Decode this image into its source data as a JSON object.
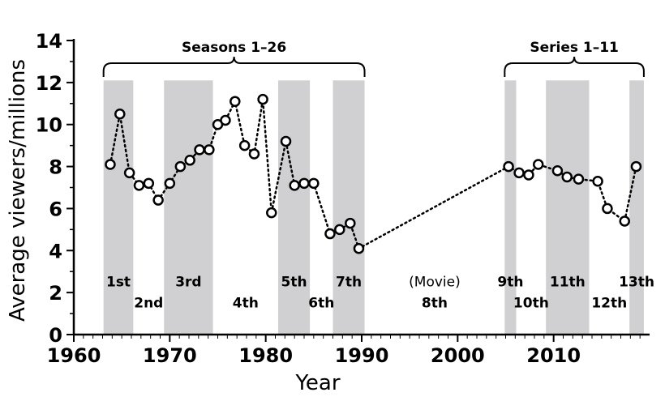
{
  "chart_data": {
    "type": "line",
    "xlabel": "Year",
    "ylabel": "Average viewers/millions",
    "xlim": [
      1960,
      2020
    ],
    "ylim": [
      0,
      14
    ],
    "x_ticks": [
      "1960",
      "1970",
      "1980",
      "1990",
      "2000",
      "2010"
    ],
    "y_ticks": [
      "0",
      "2",
      "4",
      "6",
      "8",
      "10",
      "12",
      "14"
    ],
    "series": [
      {
        "name": "Average viewers",
        "points": [
          [
            1963.8,
            8.1
          ],
          [
            1964.8,
            10.5
          ],
          [
            1965.8,
            7.7
          ],
          [
            1966.8,
            7.1
          ],
          [
            1967.8,
            7.2
          ],
          [
            1968.8,
            6.4
          ],
          [
            1970.0,
            7.2
          ],
          [
            1971.1,
            8.0
          ],
          [
            1972.1,
            8.3
          ],
          [
            1973.1,
            8.8
          ],
          [
            1974.1,
            8.8
          ],
          [
            1975.0,
            10.0
          ],
          [
            1975.8,
            10.2
          ],
          [
            1976.8,
            11.1
          ],
          [
            1977.8,
            9.0
          ],
          [
            1978.8,
            8.6
          ],
          [
            1979.7,
            11.2
          ],
          [
            1980.6,
            5.8
          ],
          [
            1982.1,
            9.2
          ],
          [
            1983.0,
            7.1
          ],
          [
            1984.0,
            7.2
          ],
          [
            1985.0,
            7.2
          ],
          [
            1986.7,
            4.8
          ],
          [
            1987.7,
            5.0
          ],
          [
            1988.8,
            5.3
          ],
          [
            1989.7,
            4.1
          ],
          [
            2005.3,
            8.0
          ],
          [
            2006.4,
            7.7
          ],
          [
            2007.4,
            7.6
          ],
          [
            2008.4,
            8.1
          ],
          [
            2010.4,
            7.8
          ],
          [
            2011.4,
            7.5
          ],
          [
            2012.6,
            7.4
          ],
          [
            2014.6,
            7.3
          ],
          [
            2015.6,
            6.0
          ],
          [
            2017.4,
            5.4
          ],
          [
            2018.6,
            8.0
          ]
        ]
      }
    ],
    "eras": [
      {
        "label": "1st",
        "start": 1963.1,
        "end": 1966.2,
        "shaded": true
      },
      {
        "label": "2nd",
        "start": 1966.2,
        "end": 1969.4,
        "shaded": false
      },
      {
        "label": "3rd",
        "start": 1969.4,
        "end": 1974.5,
        "shaded": true
      },
      {
        "label": "4th",
        "start": 1974.5,
        "end": 1981.3,
        "shaded": false
      },
      {
        "label": "5th",
        "start": 1981.3,
        "end": 1984.6,
        "shaded": true
      },
      {
        "label": "6th",
        "start": 1984.6,
        "end": 1987.0,
        "shaded": false
      },
      {
        "label": "7th",
        "start": 1987.0,
        "end": 1990.3,
        "shaded": true
      },
      {
        "label": "8th",
        "start": 1990.3,
        "end": 2004.9,
        "shaded": false
      },
      {
        "label": "9th",
        "start": 2004.9,
        "end": 2006.1,
        "shaded": true
      },
      {
        "label": "10th",
        "start": 2006.1,
        "end": 2009.2,
        "shaded": false
      },
      {
        "label": "11th",
        "start": 2009.2,
        "end": 2013.7,
        "shaded": true
      },
      {
        "label": "12th",
        "start": 2013.7,
        "end": 2017.9,
        "shaded": false
      },
      {
        "label": "13th",
        "start": 2017.9,
        "end": 2019.4,
        "shaded": true
      }
    ],
    "movie_annotation": "(Movie)",
    "brackets": [
      {
        "label": "Seasons 1–26",
        "start": 1963.1,
        "end": 1990.3
      },
      {
        "label": "Series 1–11",
        "start": 2004.9,
        "end": 2019.4
      }
    ]
  }
}
